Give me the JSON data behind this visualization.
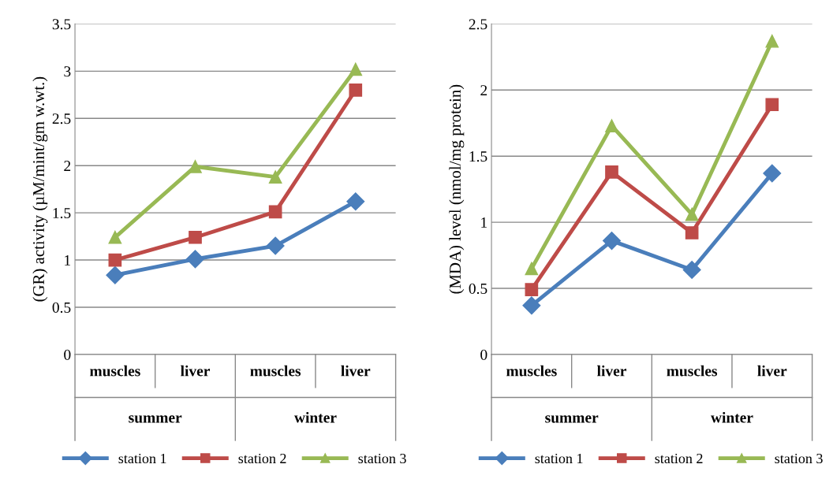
{
  "chart_data": [
    {
      "type": "line",
      "ylabel": "(GR) activity (µM/mint/gm w.wt.)",
      "categories": [
        "muscles",
        "liver",
        "muscles",
        "liver"
      ],
      "annotations": [
        "summer",
        "winter"
      ],
      "ylim": [
        0,
        3.5
      ],
      "yticks": [
        0,
        0.5,
        1,
        1.5,
        2,
        2.5,
        3,
        3.5
      ],
      "grid": "y",
      "legend": "bottom",
      "series": [
        {
          "name": "station 1",
          "color": "#4a7ebb",
          "marker": "diamond",
          "values": [
            0.84,
            1.01,
            1.15,
            1.62
          ]
        },
        {
          "name": "station 2",
          "color": "#be4b48",
          "marker": "square",
          "values": [
            1.0,
            1.24,
            1.51,
            2.8
          ]
        },
        {
          "name": "station 3",
          "color": "#98b954",
          "marker": "triangle",
          "values": [
            1.24,
            1.99,
            1.88,
            3.02
          ]
        }
      ]
    },
    {
      "type": "line",
      "ylabel": "(MDA) level (nmol/mg protein)",
      "categories": [
        "muscles",
        "liver",
        "muscles",
        "liver"
      ],
      "annotations": [
        "summer",
        "winter"
      ],
      "ylim": [
        0,
        2.5
      ],
      "yticks": [
        0,
        0.5,
        1,
        1.5,
        2,
        2.5
      ],
      "grid": "y",
      "legend": "bottom",
      "series": [
        {
          "name": "station 1",
          "color": "#4a7ebb",
          "marker": "diamond",
          "values": [
            0.37,
            0.86,
            0.64,
            1.37
          ]
        },
        {
          "name": "station 2",
          "color": "#be4b48",
          "marker": "square",
          "values": [
            0.49,
            1.38,
            0.92,
            1.89
          ]
        },
        {
          "name": "station 3",
          "color": "#98b954",
          "marker": "triangle",
          "values": [
            0.65,
            1.73,
            1.06,
            2.37
          ]
        }
      ]
    }
  ]
}
